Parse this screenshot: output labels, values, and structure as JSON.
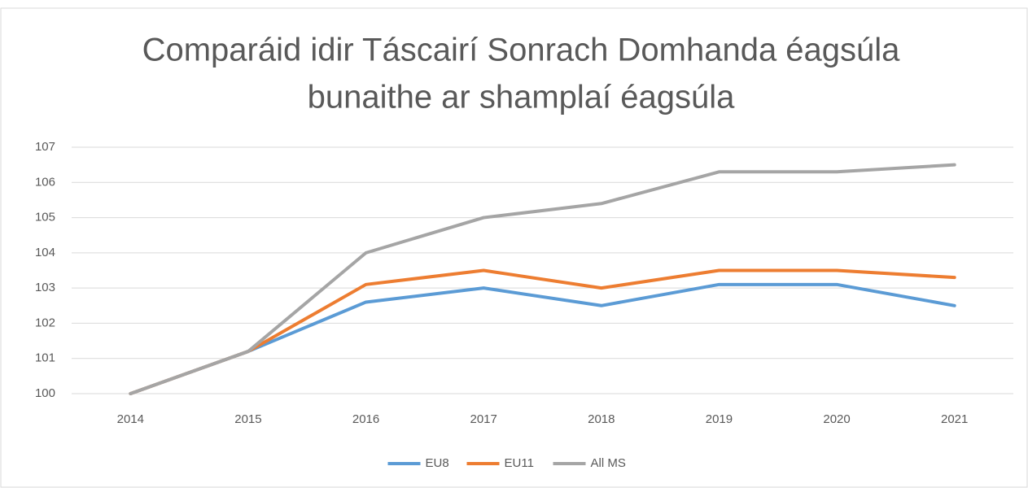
{
  "chart_data": {
    "type": "line",
    "title": [
      "Comparáid idir Táscairí Sonrach Domhanda éagsúla",
      "bunaithe ar shamplaí éagsúla"
    ],
    "categories": [
      "2014",
      "2015",
      "2016",
      "2017",
      "2018",
      "2019",
      "2020",
      "2021"
    ],
    "series": [
      {
        "name": "EU8",
        "color": "#5b9bd5",
        "values": [
          100,
          101.2,
          102.6,
          103.0,
          102.5,
          103.1,
          103.1,
          102.5
        ]
      },
      {
        "name": "EU11",
        "color": "#ed7d31",
        "values": [
          100,
          101.2,
          103.1,
          103.5,
          103.0,
          103.5,
          103.5,
          103.3
        ]
      },
      {
        "name": "All MS",
        "color": "#a5a5a5",
        "values": [
          100,
          101.2,
          104.0,
          105.0,
          105.4,
          106.3,
          106.3,
          106.5
        ]
      }
    ],
    "ylim": [
      100,
      107
    ],
    "yticks": [
      100,
      101,
      102,
      103,
      104,
      105,
      106,
      107
    ],
    "grid": true,
    "legend": "bottom"
  }
}
